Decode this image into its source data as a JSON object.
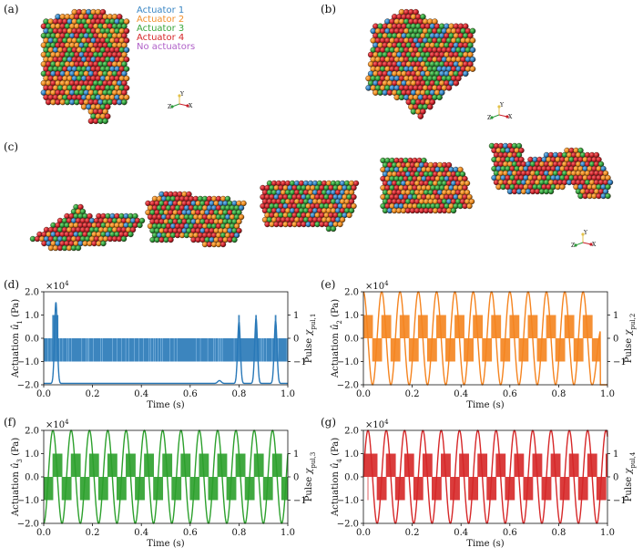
{
  "panel_labels": [
    "(a)",
    "(b)",
    "(c)",
    "(d)",
    "(e)",
    "(f)",
    "(g)"
  ],
  "legend": [
    {
      "label": "Actuator 1",
      "color": "#3a86c4"
    },
    {
      "label": "Actuator 2",
      "color": "#f28e2b"
    },
    {
      "label": "Actuator 3",
      "color": "#3aa53a"
    },
    {
      "label": "Actuator 4",
      "color": "#d62728"
    },
    {
      "label": "No actuators",
      "color": "#b060c8"
    }
  ],
  "render_colors": {
    "red": "#c8202a",
    "green": "#2c9a3a",
    "orange": "#ee8a1e",
    "blue": "#2f7fc0",
    "purple": "#a050c0"
  },
  "triad_labels": {
    "y": "Y",
    "z": "Z",
    "x": "X"
  },
  "chart_data": [
    {
      "panel": "(d)",
      "type": "line",
      "color": "#2878b8",
      "pulse": "random",
      "xlabel": "Time (s)",
      "ylabel": "Actuation û1 (Pa)",
      "ylabel_main": "Actuation ",
      "ylabel_var": "û",
      "ylabel_sub": "1",
      "ylabel_unit": " (Pa)",
      "y2label": "Pulse χpul,1",
      "y2label_main": "Pulse ",
      "y2label_var": "χ",
      "y2label_sub": "pul,1",
      "xlim": [
        0,
        1
      ],
      "ylim": [
        -20000,
        20000
      ],
      "y2lim": [
        -2,
        2
      ],
      "xticks": [
        "0.0",
        "0.2",
        "0.4",
        "0.6",
        "0.8",
        "1.0"
      ],
      "yticks": [
        "-2.0",
        "-1.0",
        "0.0",
        "1.0",
        "2.0"
      ],
      "y2ticks": [
        "-1",
        "0",
        "1"
      ],
      "multiplier": "×10",
      "multiplier_exp": "4",
      "peaks": [
        {
          "t": 0.05,
          "amp": 15500
        },
        {
          "t": 0.8,
          "amp": 7000
        },
        {
          "t": 0.87,
          "amp": 8500
        },
        {
          "t": 0.95,
          "amp": 7500
        }
      ],
      "pulse_spikes": [
        0.8,
        0.87,
        0.95
      ]
    },
    {
      "panel": "(e)",
      "type": "line",
      "color": "#f5841f",
      "pulse": "square",
      "period": 0.075,
      "phase": 0.0,
      "xlabel": "Time (s)",
      "ylabel": "Actuation û2 (Pa)",
      "ylabel_main": "Actuation ",
      "ylabel_var": "û",
      "ylabel_sub": "2",
      "ylabel_unit": " (Pa)",
      "y2label": "Pulse χpul,2",
      "y2label_main": "Pulse ",
      "y2label_var": "χ",
      "y2label_sub": "pul,2",
      "xlim": [
        0,
        1
      ],
      "ylim": [
        -20000,
        20000
      ],
      "y2lim": [
        -2,
        2
      ],
      "xticks": [
        "0.0",
        "0.2",
        "0.4",
        "0.6",
        "0.8",
        "1.0"
      ],
      "yticks": [
        "-2.0",
        "-1.0",
        "0.0",
        "1.0",
        "2.0"
      ],
      "y2ticks": [
        "-1",
        "0",
        "1"
      ],
      "multiplier": "×10",
      "multiplier_exp": "4",
      "amplitude": 20000,
      "end_time": 0.97
    },
    {
      "panel": "(f)",
      "type": "line",
      "color": "#2ca02c",
      "pulse": "square",
      "period": 0.075,
      "phase": 0.5,
      "xlabel": "Time (s)",
      "ylabel": "Actuation û3 (Pa)",
      "ylabel_main": "Actuation ",
      "ylabel_var": "û",
      "ylabel_sub": "3",
      "ylabel_unit": " (Pa)",
      "y2label": "Pulse χpul,3",
      "y2label_main": "Pulse ",
      "y2label_var": "χ",
      "y2label_sub": "pul,3",
      "xlim": [
        0,
        1
      ],
      "ylim": [
        -20000,
        20000
      ],
      "y2lim": [
        -2,
        2
      ],
      "xticks": [
        "0.0",
        "0.2",
        "0.4",
        "0.6",
        "0.8",
        "1.0"
      ],
      "yticks": [
        "-2.0",
        "-1.0",
        "0.0",
        "1.0",
        "2.0"
      ],
      "y2ticks": [
        "-1",
        "0",
        "1"
      ],
      "multiplier": "×10",
      "multiplier_exp": "4",
      "amplitude": 20000,
      "end_time": 1.0
    },
    {
      "panel": "(g)",
      "type": "line",
      "color": "#d62728",
      "pulse": "square",
      "period": 0.075,
      "phase": 0.25,
      "xlabel": "Time (s)",
      "ylabel": "Actuation û4 (Pa)",
      "ylabel_main": "Actuation ",
      "ylabel_var": "û",
      "ylabel_sub": "4",
      "ylabel_unit": " (Pa)",
      "y2label": "Pulse χpul,4",
      "y2label_main": "Pulse ",
      "y2label_var": "χ",
      "y2label_sub": "pul,4",
      "xlim": [
        0,
        1
      ],
      "ylim": [
        -20000,
        20000
      ],
      "y2lim": [
        -2,
        2
      ],
      "xticks": [
        "0.0",
        "0.2",
        "0.4",
        "0.6",
        "0.8",
        "1.0"
      ],
      "yticks": [
        "-2.0",
        "-1.0",
        "0.0",
        "1.0",
        "2.0"
      ],
      "y2ticks": [
        "-1",
        "0",
        "1"
      ],
      "multiplier": "×10",
      "multiplier_exp": "4",
      "amplitude": 20000,
      "end_time": 1.0
    }
  ]
}
